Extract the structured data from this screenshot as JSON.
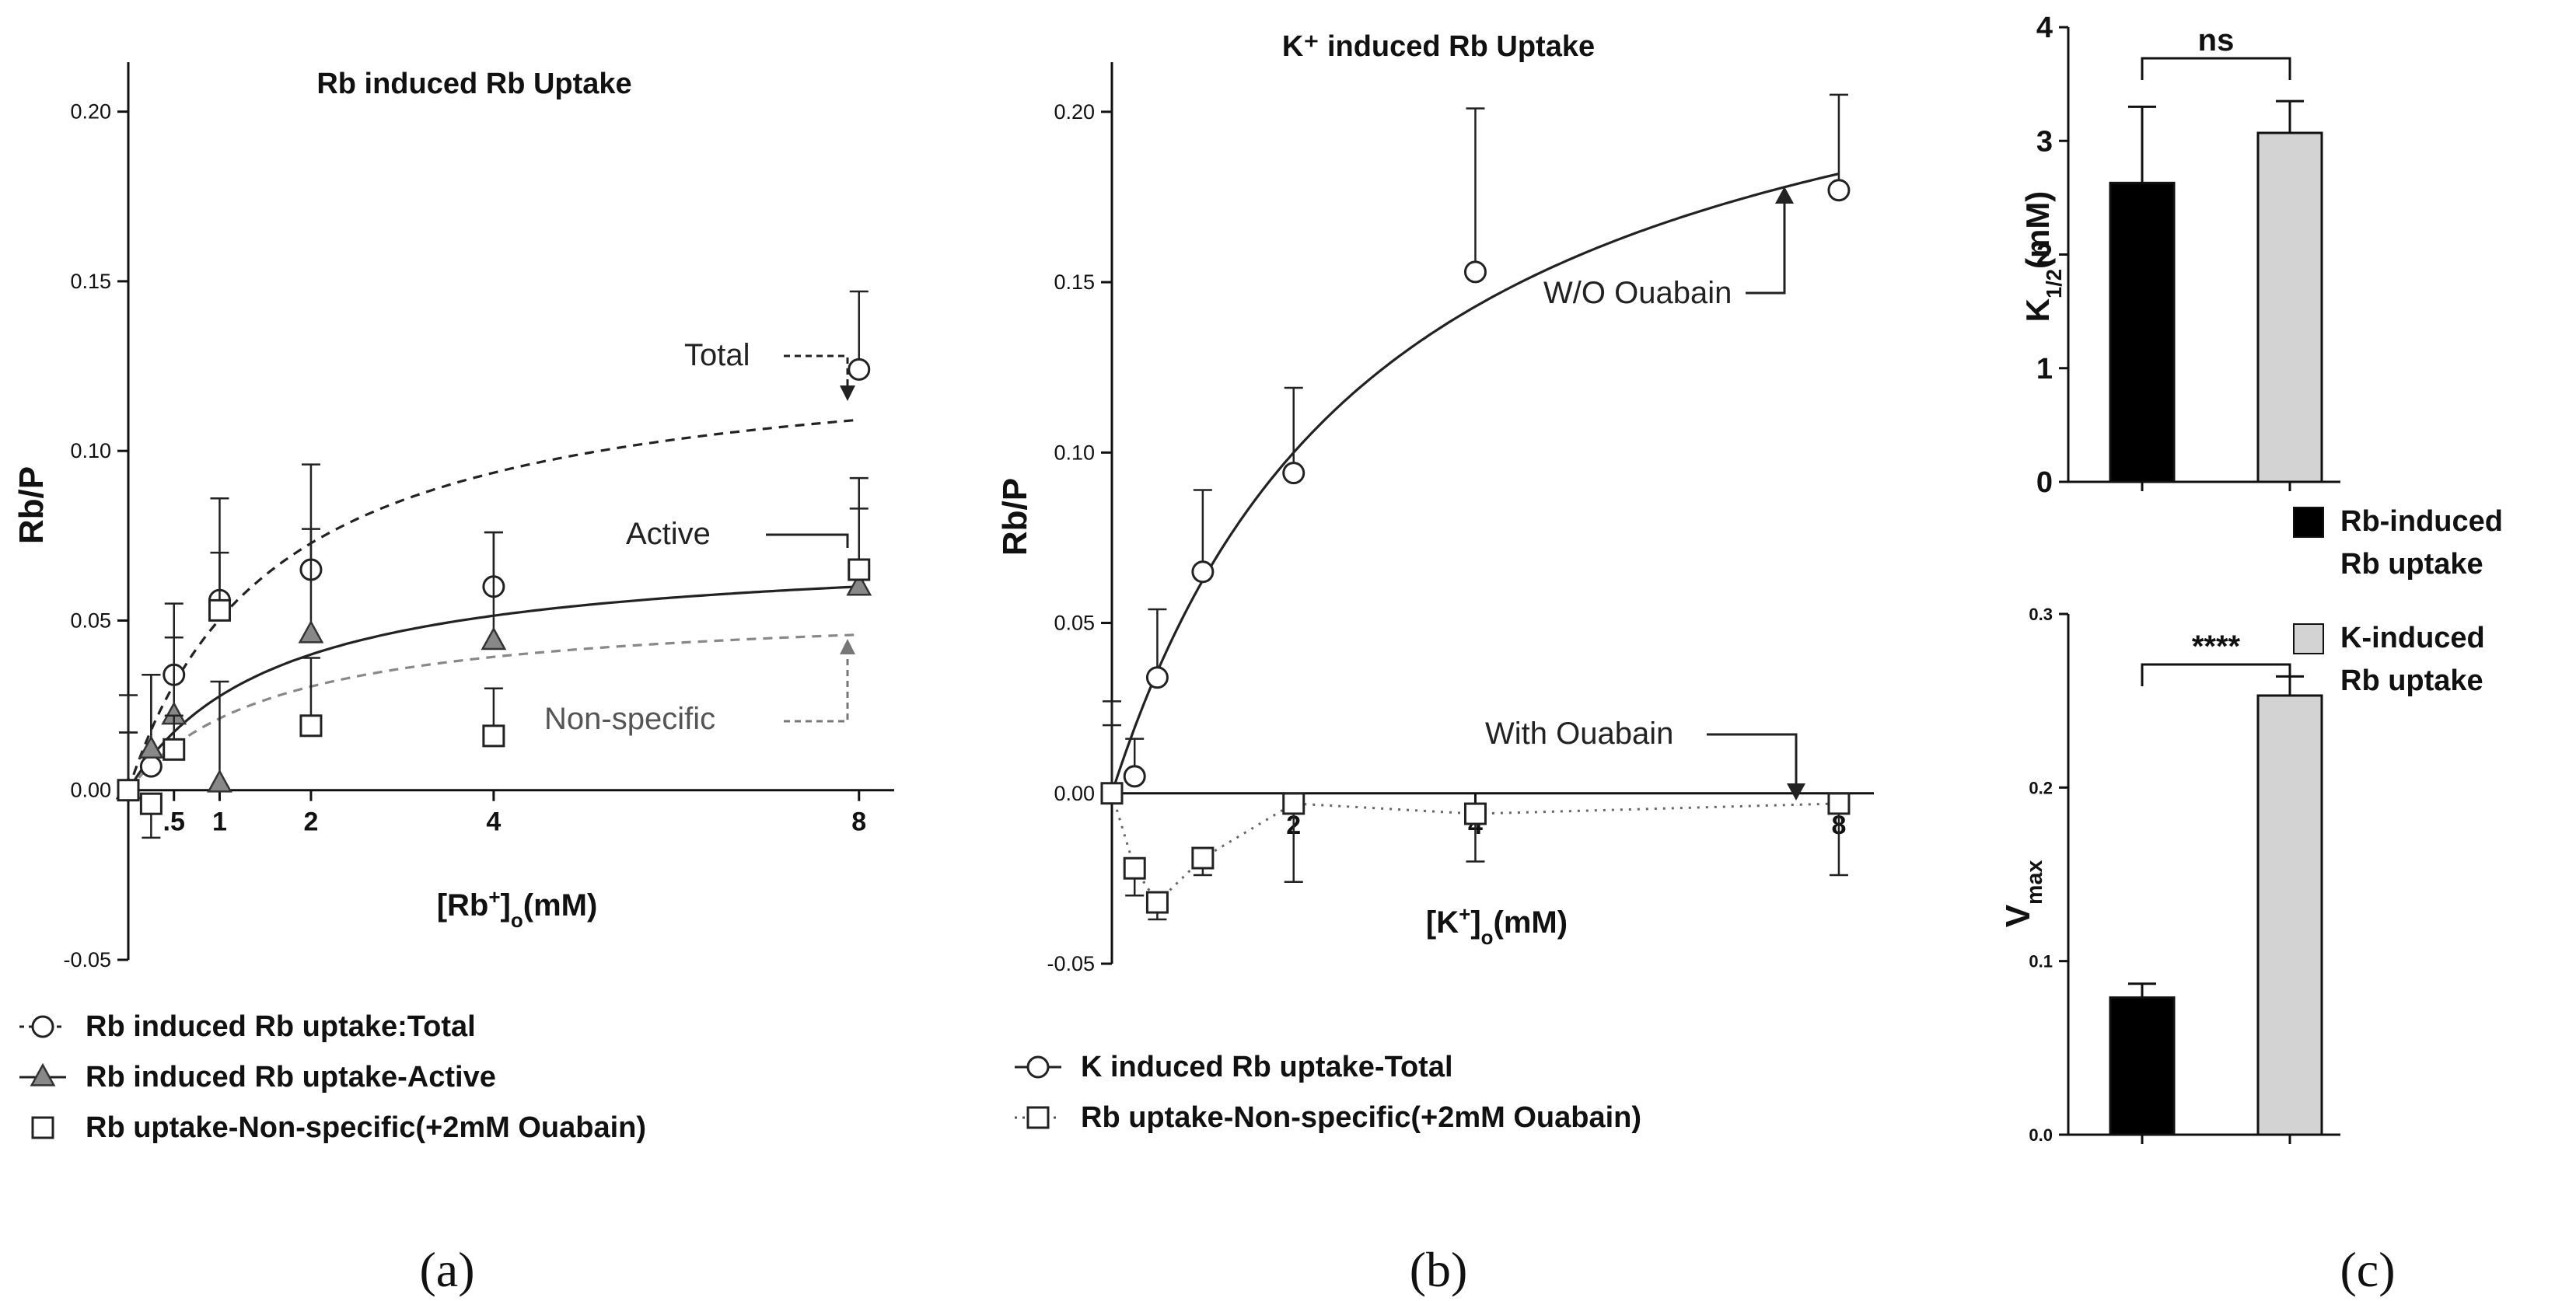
{
  "chart_data": [
    {
      "panel": "(a)",
      "type": "scatter",
      "title": "Rb induced Rb Uptake",
      "xlabel": "[Rb⁺]ₒ(mM)",
      "ylabel": "Rb/P",
      "xlim": [
        0,
        8.3
      ],
      "ylim": [
        -0.05,
        0.21
      ],
      "xticks": [
        0.5,
        1,
        2,
        4,
        8
      ],
      "xtick_labels": [
        ".5",
        "1",
        "2",
        "4",
        "8"
      ],
      "yticks": [
        -0.05,
        0.0,
        0.05,
        0.1,
        0.15,
        0.2
      ],
      "ytick_labels": [
        "-0.05",
        "0.00",
        "0.05",
        "0.10",
        "0.15",
        "0.20"
      ],
      "grid": false,
      "legend_position": "below plot",
      "series": [
        {
          "name": "Rb induced  Rb uptake:Total",
          "marker": "circle",
          "x": [
            0,
            0.25,
            0.5,
            1,
            2,
            4,
            8
          ],
          "y": [
            0.0,
            0.007,
            0.034,
            0.056,
            0.065,
            0.06,
            0.124
          ],
          "err": [
            0.017,
            0.027,
            0.021,
            0.03,
            0.031,
            0.016,
            0.023
          ]
        },
        {
          "name": "Rb induced Rb uptake-Active",
          "marker": "triangle",
          "x": [
            0,
            0.25,
            0.5,
            1,
            2,
            4,
            8
          ],
          "y": [
            0.0,
            0.012,
            0.022,
            0.002,
            0.046,
            0.044,
            0.06
          ],
          "err": [
            0.017,
            0.022,
            0.023,
            0.03,
            0.031,
            0.032,
            0.032
          ]
        },
        {
          "name": "Rb uptake-Non-specific(+2mM Ouabain)",
          "marker": "square",
          "x": [
            0,
            0.25,
            0.5,
            1,
            2,
            4,
            8
          ],
          "y": [
            0.0,
            -0.004,
            0.012,
            0.053,
            0.019,
            0.016,
            0.065
          ],
          "err": [
            0.028,
            0.01,
            0.01,
            0.017,
            0.02,
            0.014,
            0.018
          ]
        }
      ],
      "fits": [
        {
          "series": "Total",
          "vmax": 0.131,
          "k": 1.6,
          "style": "dashed",
          "color": "#222222"
        },
        {
          "series": "Active",
          "vmax": 0.072,
          "k": 1.6,
          "style": "solid",
          "color": "#222222"
        },
        {
          "series": "Non-specific",
          "vmax": 0.055,
          "k": 1.6,
          "style": "dashed",
          "color": "#888888"
        }
      ],
      "annotations": [
        "Total",
        "Active",
        "Non-specific"
      ]
    },
    {
      "panel": "(b)",
      "type": "scatter",
      "title": "K⁺ induced Rb Uptake",
      "xlabel": "[K⁺]ₒ(mM)",
      "ylabel": "Rb/P",
      "xlim": [
        0,
        8.3
      ],
      "ylim": [
        -0.05,
        0.21
      ],
      "xticks": [
        2,
        4,
        8
      ],
      "xtick_labels": [
        "2",
        "4",
        "8"
      ],
      "yticks": [
        -0.05,
        0.0,
        0.05,
        0.1,
        0.15,
        0.2
      ],
      "ytick_labels": [
        "-0.05",
        "0.00",
        "0.05",
        "0.10",
        "0.15",
        "0.20"
      ],
      "grid": false,
      "legend_position": "below plot",
      "series": [
        {
          "name": "K induced Rb uptake-Total",
          "marker": "circle",
          "x": [
            0,
            0.25,
            0.5,
            1,
            2,
            4,
            8
          ],
          "y": [
            0.0,
            0.005,
            0.034,
            0.065,
            0.094,
            0.153,
            0.177
          ],
          "err": [
            0.027,
            0.011,
            0.02,
            0.024,
            0.025,
            0.048,
            0.028
          ]
        },
        {
          "name": "Rb uptake-Non-specific(+2mM Ouabain)",
          "marker": "square",
          "x": [
            0,
            0.25,
            0.5,
            1,
            2,
            4,
            8
          ],
          "y": [
            0.0,
            -0.022,
            -0.032,
            -0.019,
            -0.003,
            -0.006,
            -0.003
          ],
          "err": [
            0.02,
            0.008,
            0.005,
            0.005,
            0.023,
            0.014,
            0.021
          ]
        }
      ],
      "fits": [
        {
          "series": "Total",
          "vmax": 0.25,
          "k": 3.0,
          "style": "solid",
          "color": "#222222"
        }
      ],
      "annotations": [
        "W/O Ouabain",
        "With Ouabain"
      ]
    },
    {
      "panel": "(c)",
      "type": "bar",
      "subplots": [
        {
          "ylabel": "K1/2(mM)",
          "ylim": [
            0,
            4
          ],
          "yticks": [
            0,
            1,
            2,
            3,
            4
          ],
          "ytick_labels": [
            "0",
            "1",
            "2",
            "3",
            "4"
          ],
          "categories": [
            "Rb-induced Rb uptake",
            "K-induced Rb uptake"
          ],
          "values": [
            2.63,
            3.07
          ],
          "errors": [
            0.67,
            0.28
          ],
          "significance": "ns"
        },
        {
          "ylabel": "Vmax",
          "ylim": [
            0,
            0.3
          ],
          "yticks": [
            0.0,
            0.1,
            0.2,
            0.3
          ],
          "ytick_labels": [
            "0.0",
            "0.1",
            "0.2",
            "0.3"
          ],
          "categories": [
            "Rb-induced Rb uptake",
            "K-induced Rb uptake"
          ],
          "values": [
            0.079,
            0.253
          ],
          "errors": [
            0.008,
            0.011
          ],
          "significance": "****"
        }
      ],
      "legend": [
        {
          "line1": "Rb-induced",
          "line2": "Rb uptake",
          "color": "#000000"
        },
        {
          "line1": "K-induced",
          "line2": "Rb uptake",
          "color": "#d3d3d3"
        }
      ]
    }
  ]
}
